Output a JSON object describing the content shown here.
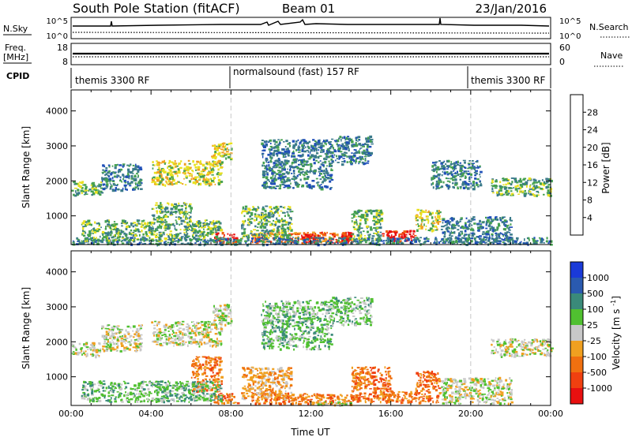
{
  "header": {
    "station": "South Pole Station (fitACF)",
    "beam": "Beam 01",
    "date": "23/Jan/2016"
  },
  "top_panels": {
    "nsky": {
      "label": "N.Sky",
      "ticks": [
        "10^5",
        "10^0"
      ],
      "right_label": "N.Search",
      "right_ticks": [
        "10^5",
        "10^0"
      ]
    },
    "freq": {
      "label_line1": "Freq.",
      "label_line2": "[MHz]",
      "ticks": [
        "18",
        "8"
      ],
      "right_label": "Nave",
      "right_ticks": [
        "60",
        "0"
      ]
    },
    "cpid": {
      "label": "CPID",
      "segments": [
        {
          "label": "themis 3300 RF",
          "start_h": 0,
          "end_h": 8
        },
        {
          "label": "normalsound (fast) 157 RF",
          "start_h": 8,
          "end_h": 20
        },
        {
          "label": "themis 3300 RF",
          "start_h": 20,
          "end_h": 24
        }
      ]
    }
  },
  "chart_data": [
    {
      "type": "heatmap",
      "name": "power-panel",
      "ylabel": "Slant Range [km]",
      "xlabel": "",
      "xlim": [
        0,
        24
      ],
      "ylim": [
        180,
        4600
      ],
      "yticks": [
        1000,
        2000,
        3000,
        4000
      ],
      "colorbar": {
        "label": "Power [dB]",
        "ticks": [
          "4",
          "8",
          "12",
          "16",
          "20",
          "24",
          "28"
        ],
        "colors": [
          "#1010ff",
          "#2050b8",
          "#3a7a8a",
          "#45a050",
          "#e8e020",
          "#f0a020",
          "#f06010",
          "#e81010"
        ]
      },
      "regions": [
        {
          "h0": 0.0,
          "h1": 1.5,
          "r0": 1600,
          "r1": 2000,
          "level": 3
        },
        {
          "h0": 1.5,
          "h1": 3.5,
          "r0": 1750,
          "r1": 2500,
          "level": 2
        },
        {
          "h0": 4.0,
          "h1": 7.5,
          "r0": 1900,
          "r1": 2600,
          "level": 4
        },
        {
          "h0": 7.0,
          "h1": 8.0,
          "r0": 2500,
          "r1": 3100,
          "level": 4
        },
        {
          "h0": 7.1,
          "h1": 8.3,
          "r0": 250,
          "r1": 550,
          "level": 7
        },
        {
          "h0": 9.0,
          "h1": 14.0,
          "r0": 250,
          "r1": 550,
          "level": 6
        },
        {
          "h0": 11.5,
          "h1": 12.2,
          "r0": 250,
          "r1": 500,
          "level": 7
        },
        {
          "h0": 13.5,
          "h1": 14.0,
          "r0": 250,
          "r1": 550,
          "level": 7
        },
        {
          "h0": 15.5,
          "h1": 17.2,
          "r0": 280,
          "r1": 600,
          "level": 7
        },
        {
          "h0": 17.2,
          "h1": 18.4,
          "r0": 600,
          "r1": 1200,
          "level": 4
        },
        {
          "h0": 21.0,
          "h1": 24.0,
          "r0": 1600,
          "r1": 2100,
          "level": 3
        },
        {
          "h0": 0.0,
          "h1": 24.0,
          "r0": 200,
          "r1": 400,
          "level": 2
        },
        {
          "h0": 0.5,
          "h1": 7.5,
          "r0": 300,
          "r1": 900,
          "level": 3
        },
        {
          "h0": 8.5,
          "h1": 11.0,
          "r0": 400,
          "r1": 1300,
          "level": 3
        },
        {
          "h0": 14.0,
          "h1": 15.5,
          "r0": 300,
          "r1": 1200,
          "level": 3
        },
        {
          "h0": 18.5,
          "h1": 22.0,
          "r0": 250,
          "r1": 1000,
          "level": 2
        },
        {
          "h0": 9.5,
          "h1": 13.0,
          "r0": 1800,
          "r1": 3200,
          "level": 2
        },
        {
          "h0": 13.0,
          "h1": 15.0,
          "r0": 2500,
          "r1": 3300,
          "level": 2
        },
        {
          "h0": 18.0,
          "h1": 20.5,
          "r0": 1800,
          "r1": 2600,
          "level": 2
        },
        {
          "h0": 4.0,
          "h1": 6.0,
          "r0": 900,
          "r1": 1400,
          "level": 3
        }
      ]
    },
    {
      "type": "heatmap",
      "name": "velocity-panel",
      "ylabel": "Slant Range [km]",
      "xlabel": "Time UT",
      "xlim": [
        0,
        24
      ],
      "ylim": [
        180,
        4600
      ],
      "yticks": [
        1000,
        2000,
        3000,
        4000
      ],
      "xticks": [
        "00:00",
        "04:00",
        "08:00",
        "12:00",
        "16:00",
        "20:00",
        "00:00"
      ],
      "colorbar": {
        "label": "Velocity [m s^-1]",
        "ticks": [
          "1000",
          "500",
          "100",
          "25",
          "-25",
          "-100",
          "-500",
          "-1000"
        ],
        "colors": [
          "#1a3ad8",
          "#2a5ab0",
          "#3a8a7a",
          "#50c030",
          "#c8c8c8",
          "#f0a020",
          "#f07010",
          "#f04010",
          "#e81010"
        ]
      },
      "regions": [
        {
          "h0": 0.0,
          "h1": 1.5,
          "r0": 1600,
          "r1": 2000,
          "level": 4
        },
        {
          "h0": 1.5,
          "h1": 3.5,
          "r0": 1750,
          "r1": 2500,
          "level": 4
        },
        {
          "h0": 4.0,
          "h1": 7.5,
          "r0": 1900,
          "r1": 2600,
          "level": 4
        },
        {
          "h0": 7.0,
          "h1": 8.0,
          "r0": 2500,
          "r1": 3100,
          "level": 4
        },
        {
          "h0": 7.1,
          "h1": 8.3,
          "r0": 250,
          "r1": 550,
          "level": 6
        },
        {
          "h0": 9.0,
          "h1": 14.0,
          "r0": 250,
          "r1": 550,
          "level": 6
        },
        {
          "h0": 15.5,
          "h1": 18.5,
          "r0": 280,
          "r1": 600,
          "level": 6
        },
        {
          "h0": 6.0,
          "h1": 7.5,
          "r0": 600,
          "r1": 1600,
          "level": 6
        },
        {
          "h0": 8.5,
          "h1": 11.0,
          "r0": 400,
          "r1": 1300,
          "level": 5
        },
        {
          "h0": 14.0,
          "h1": 16.0,
          "r0": 300,
          "r1": 1300,
          "level": 6
        },
        {
          "h0": 17.2,
          "h1": 18.4,
          "r0": 600,
          "r1": 1200,
          "level": 6
        },
        {
          "h0": 21.0,
          "h1": 24.0,
          "r0": 1600,
          "r1": 2100,
          "level": 4
        },
        {
          "h0": 0.5,
          "h1": 7.5,
          "r0": 300,
          "r1": 900,
          "level": 3
        },
        {
          "h0": 18.5,
          "h1": 22.0,
          "r0": 250,
          "r1": 1000,
          "level": 4
        },
        {
          "h0": 9.5,
          "h1": 13.0,
          "r0": 1800,
          "r1": 3200,
          "level": 3
        },
        {
          "h0": 13.0,
          "h1": 15.0,
          "r0": 2500,
          "r1": 3300,
          "level": 3
        },
        {
          "h0": 12.0,
          "h1": 14.0,
          "r0": 200,
          "r1": 300,
          "level": 4
        }
      ]
    }
  ],
  "colors": {
    "axis": "#000000",
    "dashed_marker": "#c8c8c8"
  }
}
